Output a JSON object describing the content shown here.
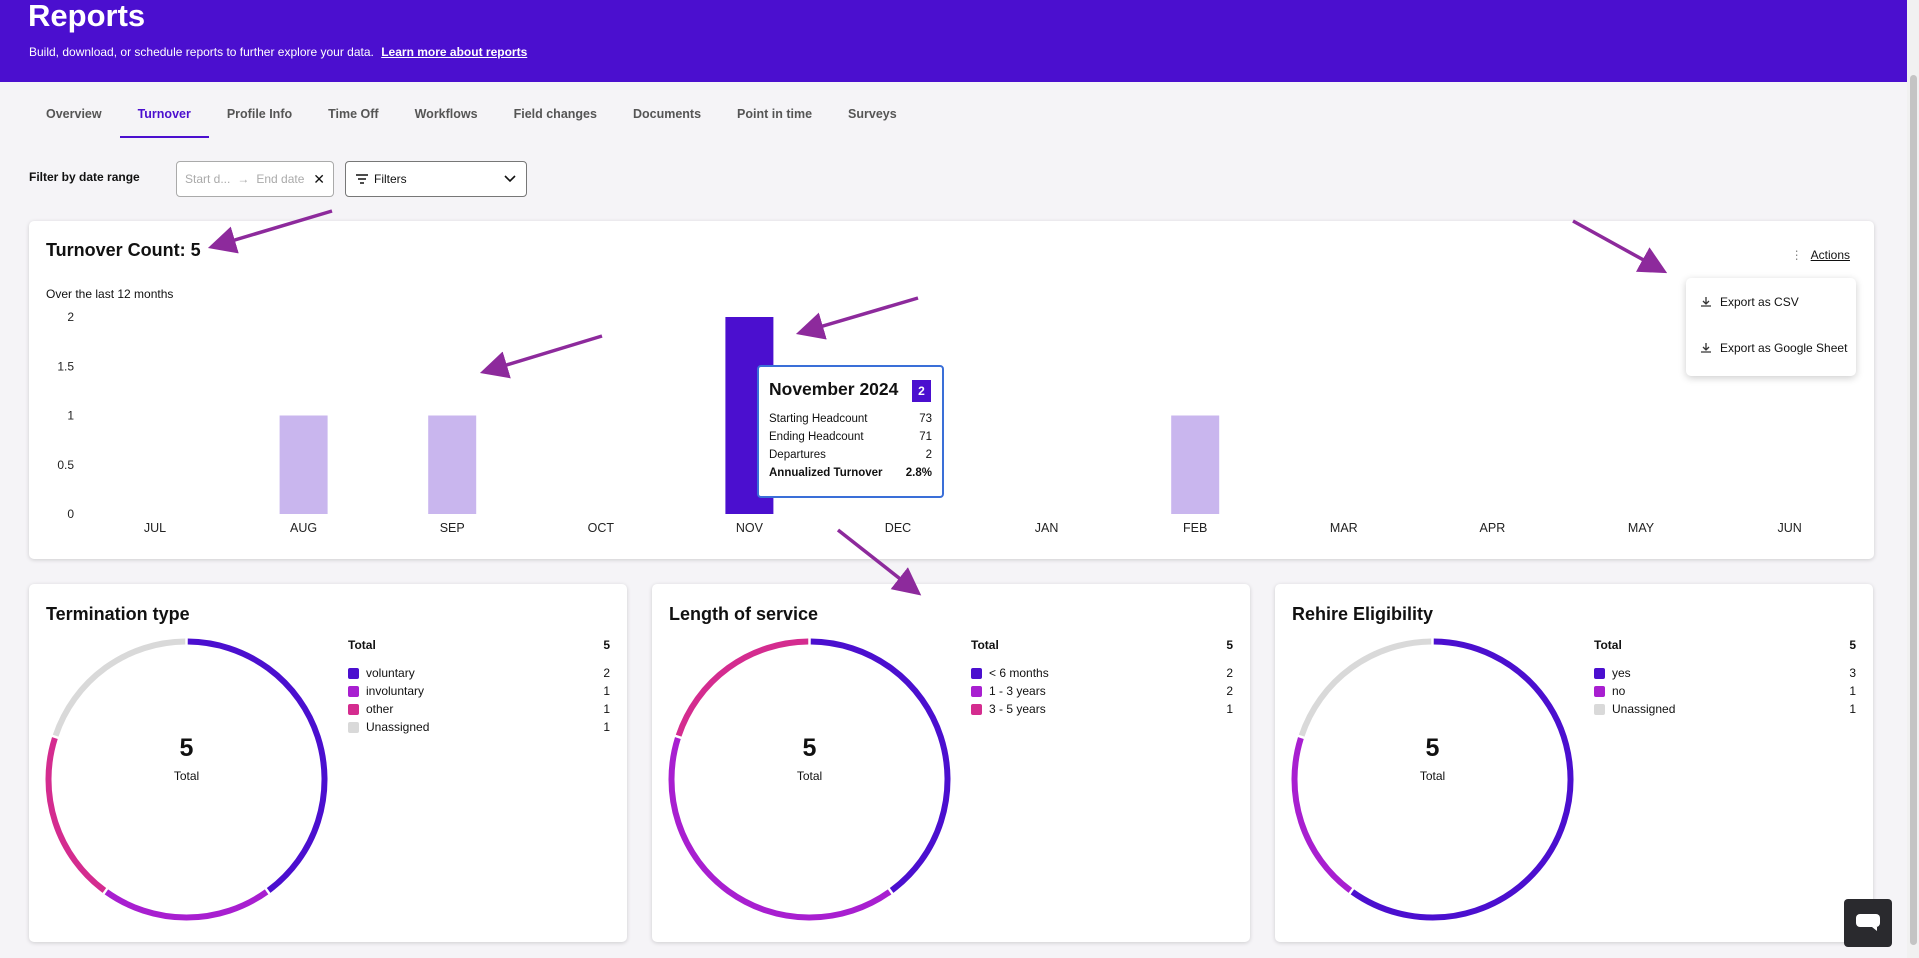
{
  "header": {
    "title": "Reports",
    "subtitle": "Build, download, or schedule reports to further explore your data.",
    "learn_more": "Learn more about reports"
  },
  "tabs": [
    {
      "label": "Overview"
    },
    {
      "label": "Turnover"
    },
    {
      "label": "Profile Info"
    },
    {
      "label": "Time Off"
    },
    {
      "label": "Workflows"
    },
    {
      "label": "Field changes"
    },
    {
      "label": "Documents"
    },
    {
      "label": "Point in time"
    },
    {
      "label": "Surveys"
    }
  ],
  "active_tab": "Turnover",
  "filter": {
    "label": "Filter by date range",
    "start_placeholder": "Start d...",
    "end_placeholder": "End date",
    "filters_label": "Filters"
  },
  "turnover": {
    "title": "Turnover Count: 5",
    "subtitle": "Over the last 12 months",
    "actions_label": "Actions"
  },
  "chart_data": {
    "type": "bar",
    "categories": [
      "JUL",
      "AUG",
      "SEP",
      "OCT",
      "NOV",
      "DEC",
      "JAN",
      "FEB",
      "MAR",
      "APR",
      "MAY",
      "JUN"
    ],
    "values": [
      0,
      1,
      1,
      0,
      2,
      0,
      0,
      1,
      0,
      0,
      0,
      0
    ],
    "highlighted": "NOV",
    "ylim": [
      0,
      2
    ],
    "yticks": [
      "2",
      "1.5",
      "1",
      "0.5",
      "0"
    ],
    "ytick_values": [
      2,
      1.5,
      1,
      0.5,
      0
    ],
    "title": "",
    "xlabel": "",
    "ylabel": "",
    "grid": false,
    "bar_color": "#c9b6ee",
    "highlight_color": "#4b0fcf"
  },
  "tooltip": {
    "title": "November 2024",
    "badge": "2",
    "rows": [
      {
        "label": "Starting Headcount",
        "value": "73"
      },
      {
        "label": "Ending Headcount",
        "value": "71"
      },
      {
        "label": "Departures",
        "value": "2"
      },
      {
        "label": "Annualized Turnover",
        "value": "2.8%"
      }
    ]
  },
  "export_menu": {
    "csv": "Export as CSV",
    "sheet": "Export as Google Sheet"
  },
  "breakdowns": [
    {
      "title": "Termination type",
      "total_label": "Total",
      "total": "5",
      "center_value": "5",
      "center_label": "Total",
      "items": [
        {
          "label": "voluntary",
          "value": "2",
          "color": "#4b0fcf"
        },
        {
          "label": "involuntary",
          "value": "1",
          "color": "#a81fd0"
        },
        {
          "label": "other",
          "value": "1",
          "color": "#d42c8f"
        },
        {
          "label": "Unassigned",
          "value": "1",
          "color": "#d9d9d9"
        }
      ]
    },
    {
      "title": "Length of service",
      "total_label": "Total",
      "total": "5",
      "center_value": "5",
      "center_label": "Total",
      "items": [
        {
          "label": "< 6 months",
          "value": "2",
          "color": "#4b0fcf"
        },
        {
          "label": "1 - 3 years",
          "value": "2",
          "color": "#a81fd0"
        },
        {
          "label": "3 - 5 years",
          "value": "1",
          "color": "#d42c8f"
        }
      ]
    },
    {
      "title": "Rehire Eligibility",
      "total_label": "Total",
      "total": "5",
      "center_value": "5",
      "center_label": "Total",
      "items": [
        {
          "label": "yes",
          "value": "3",
          "color": "#4b0fcf"
        },
        {
          "label": "no",
          "value": "1",
          "color": "#a81fd0"
        },
        {
          "label": "Unassigned",
          "value": "1",
          "color": "#d9d9d9"
        }
      ]
    }
  ]
}
